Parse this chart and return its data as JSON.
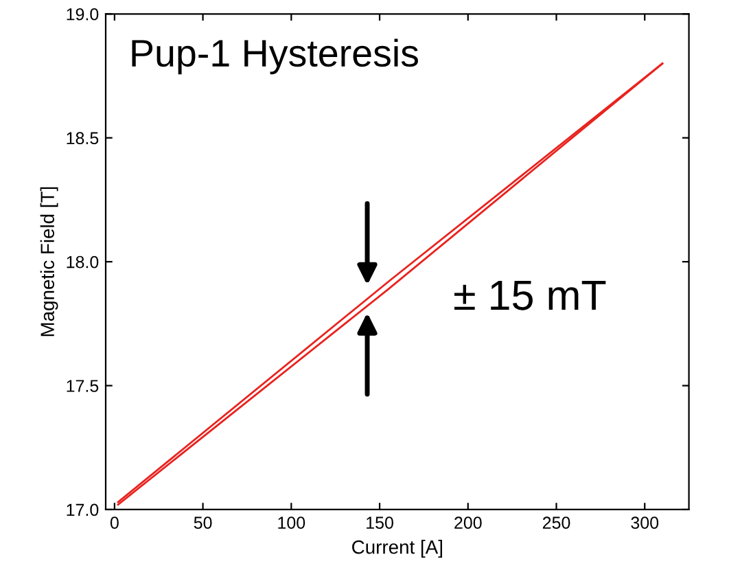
{
  "chart_data": {
    "type": "line",
    "title": "Pup-1 Hysteresis",
    "xlabel": "Current [A]",
    "ylabel": "Magnetic Field [T]",
    "series": [
      {
        "color": "#e8231f",
        "x": [
          2,
          155,
          310
        ],
        "values": [
          17.02,
          17.89,
          18.8
        ]
      },
      {
        "color": "#e8231f",
        "x": [
          2,
          155,
          310
        ],
        "values": [
          17.03,
          17.92,
          18.8
        ]
      }
    ],
    "xlim": [
      -5,
      325
    ],
    "xticks": [
      0,
      50,
      100,
      150,
      200,
      250,
      300
    ],
    "ylim": [
      17.0,
      19.0
    ],
    "yticks": [
      {
        "value": 17.0,
        "label": "17.0"
      },
      {
        "value": 17.5,
        "label": "17.5"
      },
      {
        "value": 18.0,
        "label": "18.0"
      },
      {
        "value": 18.5,
        "label": "18.5"
      },
      {
        "value": 19.0,
        "label": "19.0"
      }
    ],
    "annotations": [
      {
        "text": "± 15 mT",
        "x": 143,
        "y": 17.85
      }
    ],
    "grid": false,
    "legend": false,
    "marker": "none",
    "line_style": "solid"
  }
}
